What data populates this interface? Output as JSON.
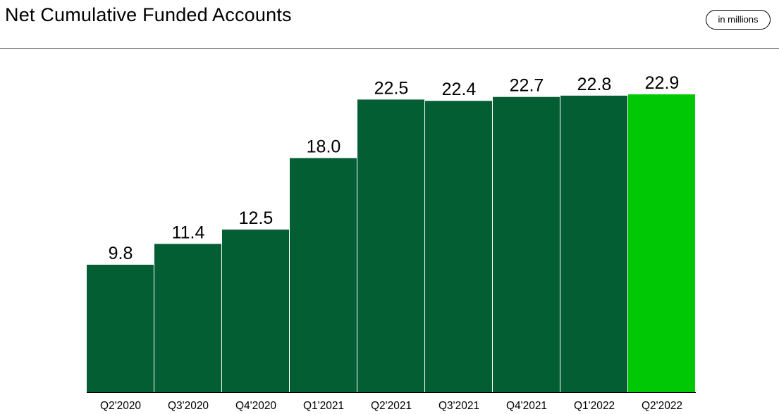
{
  "header": {
    "title": "Net Cumulative Funded Accounts",
    "units_badge": "in millions"
  },
  "colors": {
    "bar": "#035e33",
    "highlight_bar": "#00c805",
    "axis": "#000000",
    "rule": "#555555"
  },
  "chart_data": {
    "type": "bar",
    "title": "Net Cumulative Funded Accounts",
    "units": "in millions",
    "xlabel": "",
    "ylabel": "",
    "categories": [
      "Q2'2020",
      "Q3'2020",
      "Q4'2020",
      "Q1'2021",
      "Q2'2021",
      "Q3'2021",
      "Q4'2021",
      "Q1'2022",
      "Q2'2022"
    ],
    "values": [
      9.8,
      11.4,
      12.5,
      18.0,
      22.5,
      22.4,
      22.7,
      22.8,
      22.9
    ],
    "value_labels": [
      "9.8",
      "11.4",
      "12.5",
      "18.0",
      "22.5",
      "22.4",
      "22.7",
      "22.8",
      "22.9"
    ],
    "highlight_category": "Q2'2022",
    "ylim": [
      0,
      23.3
    ],
    "grid": false,
    "legend": "none"
  }
}
